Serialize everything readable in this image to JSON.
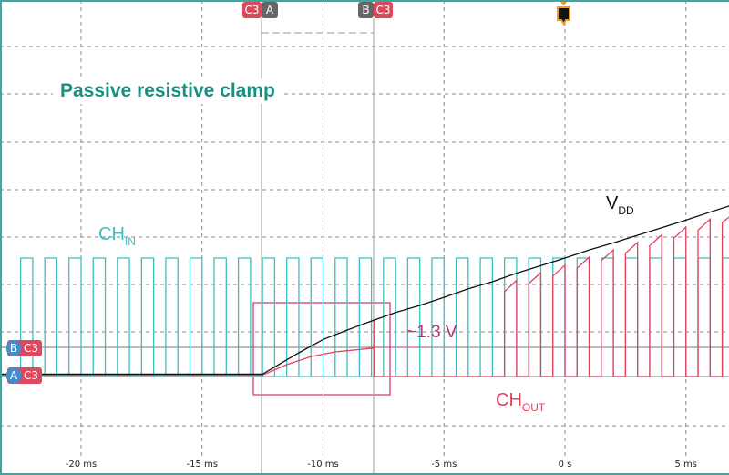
{
  "title": "Passive resistive clamp",
  "labels": {
    "ch_in": "CH",
    "ch_in_sub": "IN",
    "vdd": "V",
    "vdd_sub": "DD",
    "ch_out": "CH",
    "ch_out_sub": "OUT",
    "clamp_voltage": "~1.3 V"
  },
  "cursors": {
    "a": {
      "name": "A",
      "channel": "C3",
      "time_ms": -12.5
    },
    "b": {
      "name": "B",
      "channel": "C3",
      "time_ms": -7.9
    }
  },
  "trigger": {
    "label": "T",
    "time_ms": 0
  },
  "colors": {
    "ch_in": "#3cbfc4",
    "ch_out": "#e8405a",
    "vdd": "#111111",
    "annotation": "#d0307a",
    "title": "#188f82",
    "trigger": "#f39a1e"
  },
  "chart_data": {
    "type": "line",
    "xlabel": "",
    "ylabel": "",
    "xlim": [
      -23.35,
      6.8
    ],
    "x_unit": "ms",
    "x_ticks": [
      "-20 ms",
      "-15 ms",
      "-10 ms",
      "-5 ms",
      "0 s",
      "5 ms"
    ],
    "x_tick_values": [
      -20,
      -15,
      -10,
      -5,
      0,
      5
    ],
    "y_unit": "div",
    "grid": true,
    "series": [
      {
        "name": "VDD",
        "x": [
          -23.35,
          -12.5,
          -12,
          -11,
          -10,
          -9,
          -8,
          -7,
          -6,
          -5,
          -4,
          -3,
          -2,
          -1,
          0,
          1,
          2,
          3,
          4,
          5,
          6,
          6.8
        ],
        "y": [
          0.05,
          0.05,
          0.2,
          0.5,
          0.78,
          0.98,
          1.17,
          1.35,
          1.5,
          1.67,
          1.85,
          2.0,
          2.18,
          2.34,
          2.5,
          2.67,
          2.82,
          2.98,
          3.14,
          3.3,
          3.47,
          3.6
        ]
      },
      {
        "name": "CH_IN",
        "waveform": "square",
        "period_ms": 1,
        "high_ms": 0.5,
        "first_rise_ms": -22.5,
        "high": 2.5,
        "low": 0
      },
      {
        "name": "CH_OUT",
        "x": [
          -23.35,
          -12.5,
          -11.5,
          -10.5,
          -9.5,
          -8.5,
          -7.9,
          -7.9,
          -7.9
        ],
        "y": [
          0.03,
          0.03,
          0.25,
          0.42,
          0.52,
          0.57,
          0.6,
          1.2,
          0
        ],
        "pulses_from_ms": -2.5,
        "pulse_top_below_vdd": 0.15
      }
    ]
  }
}
